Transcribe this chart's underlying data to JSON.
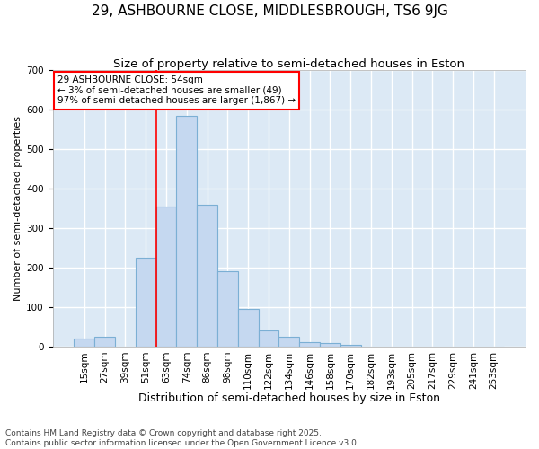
{
  "title": "29, ASHBOURNE CLOSE, MIDDLESBROUGH, TS6 9JG",
  "subtitle": "Size of property relative to semi-detached houses in Eston",
  "xlabel": "Distribution of semi-detached houses by size in Eston",
  "ylabel": "Number of semi-detached properties",
  "categories": [
    "15sqm",
    "27sqm",
    "39sqm",
    "51sqm",
    "63sqm",
    "74sqm",
    "86sqm",
    "98sqm",
    "110sqm",
    "122sqm",
    "134sqm",
    "146sqm",
    "158sqm",
    "170sqm",
    "182sqm",
    "193sqm",
    "205sqm",
    "217sqm",
    "229sqm",
    "241sqm",
    "253sqm"
  ],
  "values": [
    20,
    25,
    0,
    225,
    355,
    585,
    360,
    190,
    95,
    40,
    25,
    12,
    8,
    5,
    0,
    0,
    0,
    0,
    0,
    0,
    0
  ],
  "bar_color": "#c5d8f0",
  "bar_edge_color": "#7bafd4",
  "fig_background_color": "#ffffff",
  "ax_background_color": "#dce9f5",
  "grid_color": "#ffffff",
  "annotation_text": "29 ASHBOURNE CLOSE: 54sqm\n← 3% of semi-detached houses are smaller (49)\n97% of semi-detached houses are larger (1,867) →",
  "vline_x_index": 3.5,
  "ylim": [
    0,
    700
  ],
  "yticks": [
    0,
    100,
    200,
    300,
    400,
    500,
    600,
    700
  ],
  "footnote": "Contains HM Land Registry data © Crown copyright and database right 2025.\nContains public sector information licensed under the Open Government Licence v3.0.",
  "title_fontsize": 11,
  "subtitle_fontsize": 9.5,
  "xlabel_fontsize": 9,
  "ylabel_fontsize": 8,
  "tick_fontsize": 7.5,
  "annotation_fontsize": 7.5,
  "footnote_fontsize": 6.5
}
